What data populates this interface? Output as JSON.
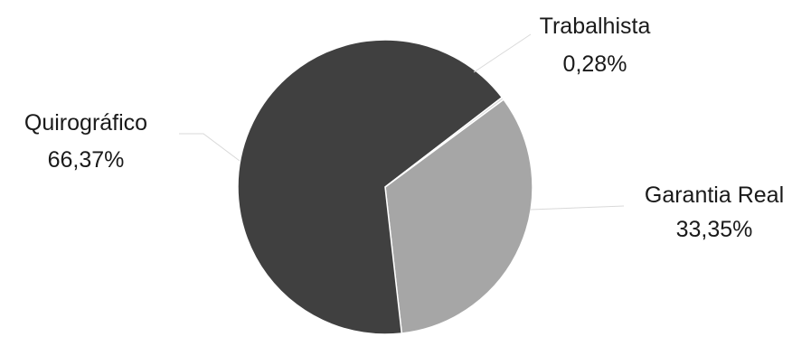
{
  "chart_data": {
    "type": "pie",
    "title": "",
    "legend": "none",
    "slices": [
      {
        "name": "Garantia Real",
        "value": 33.35,
        "label": "33,35%",
        "color": "#a6a6a6"
      },
      {
        "name": "Quirográfico",
        "value": 66.37,
        "label": "66,37%",
        "color": "#404040"
      },
      {
        "name": "Trabalhista",
        "value": 0.28,
        "label": "0,28%",
        "color": "#d9d9d9"
      }
    ]
  }
}
